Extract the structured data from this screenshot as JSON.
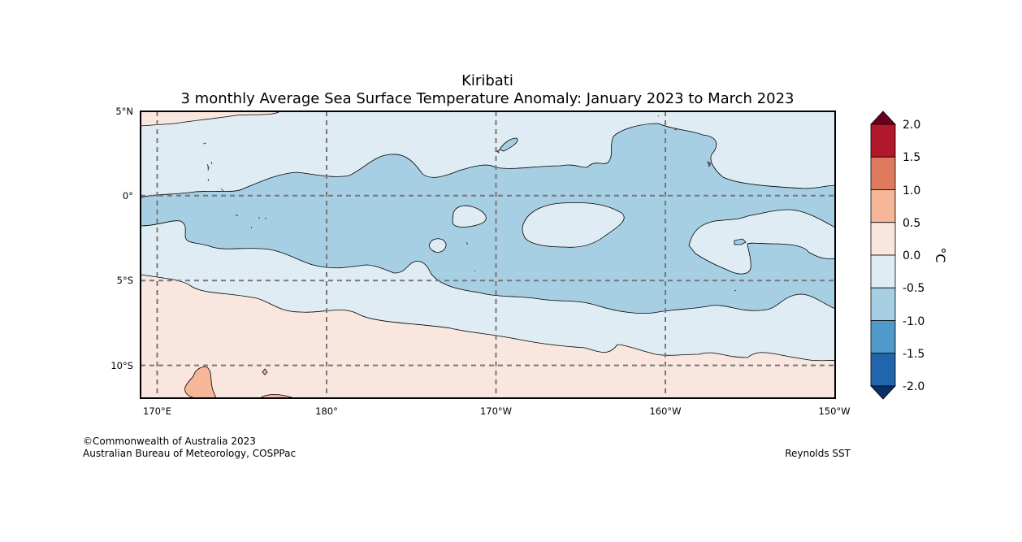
{
  "title": {
    "line1": "Kiribati",
    "line2": "3 monthly Average Sea Surface Temperature Anomaly: January 2023 to March 2023"
  },
  "map": {
    "lon_labels": [
      "170°E",
      "180°",
      "170°W",
      "160°W",
      "150°W"
    ],
    "lat_labels": [
      "5°N",
      "0°",
      "5°S",
      "10°S"
    ],
    "lon_range": [
      "169°E",
      "150°W"
    ],
    "lat_range": [
      "5°N",
      "12°S"
    ]
  },
  "colorbar": {
    "unit": "°C",
    "tick_labels": [
      "2.0",
      "1.5",
      "1.0",
      "0.5",
      "0.0",
      "-0.5",
      "-1.0",
      "-1.5",
      "-2.0"
    ],
    "colors": {
      "above_2.0": "#67001f",
      "1.5_to_2.0": "#b2182b",
      "1.0_to_1.5": "#e07a5f",
      "0.5_to_1.0": "#f6b699",
      "0.0_to_0.5": "#f9e6de",
      "-0.5_to_0.0": "#e0ecf3",
      "-1.0_to_-0.5": "#a7cfe4",
      "-1.5_to_-1.0": "#4f9acb",
      "-2.0_to_-1.5": "#2166ac",
      "below_-2.0": "#08306b"
    }
  },
  "footer": {
    "copyright": "©Commonwealth of Australia 2023",
    "agency": "Australian Bureau of Meteorology, COSPPac",
    "source": "Reynolds SST"
  }
}
